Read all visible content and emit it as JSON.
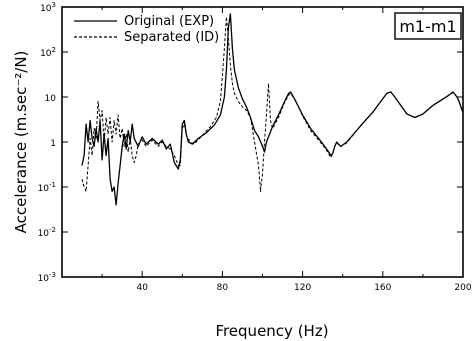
{
  "chart_data": {
    "type": "line",
    "xlabel": "Frequency (Hz)",
    "ylabel": "Accelerance (m.sec⁻²/N)",
    "annotation": "m1-m1",
    "xlim": [
      0,
      200
    ],
    "ylim": [
      0.001,
      1000
    ],
    "yscale": "log",
    "grid": false,
    "legend_position": "top-left",
    "x_ticks": [
      {
        "value": 40,
        "label": "40"
      },
      {
        "value": 80,
        "label": "80"
      },
      {
        "value": 120,
        "label": "120"
      },
      {
        "value": 160,
        "label": "160"
      },
      {
        "value": 200,
        "label": "200"
      }
    ],
    "y_ticks": [
      {
        "value": 0.001,
        "base": "10",
        "exp": "-3"
      },
      {
        "value": 0.01,
        "base": "10",
        "exp": "-2"
      },
      {
        "value": 0.1,
        "base": "10",
        "exp": "-1"
      },
      {
        "value": 1,
        "base": "1",
        "exp": ""
      },
      {
        "value": 10,
        "base": "10",
        "exp": ""
      },
      {
        "value": 100,
        "base": "10",
        "exp": "2"
      },
      {
        "value": 1000,
        "base": "10",
        "exp": "3"
      }
    ],
    "series": [
      {
        "name": "Original  (EXP)",
        "style": "solid",
        "points": [
          [
            10,
            0.3
          ],
          [
            11,
            0.5
          ],
          [
            12,
            2.5
          ],
          [
            13,
            1.0
          ],
          [
            14,
            3.0
          ],
          [
            15,
            1.2
          ],
          [
            16,
            0.8
          ],
          [
            17,
            2.0
          ],
          [
            18,
            1.0
          ],
          [
            19,
            3.0
          ],
          [
            20,
            0.4
          ],
          [
            21,
            1.5
          ],
          [
            22,
            0.5
          ],
          [
            23,
            1.2
          ],
          [
            24,
            0.15
          ],
          [
            25,
            0.08
          ],
          [
            26,
            0.1
          ],
          [
            27,
            0.04
          ],
          [
            28,
            0.12
          ],
          [
            29,
            0.3
          ],
          [
            30,
            0.8
          ],
          [
            31,
            1.5
          ],
          [
            32,
            0.7
          ],
          [
            33,
            1.8
          ],
          [
            34,
            1.0
          ],
          [
            35,
            2.5
          ],
          [
            36,
            1.2
          ],
          [
            38,
            0.8
          ],
          [
            40,
            1.3
          ],
          [
            42,
            0.9
          ],
          [
            45,
            1.2
          ],
          [
            48,
            0.9
          ],
          [
            50,
            1.1
          ],
          [
            52,
            0.7
          ],
          [
            54,
            0.9
          ],
          [
            56,
            0.35
          ],
          [
            58,
            0.25
          ],
          [
            59,
            0.4
          ],
          [
            60,
            2.5
          ],
          [
            61,
            3.0
          ],
          [
            62,
            1.5
          ],
          [
            63,
            1.0
          ],
          [
            65,
            0.9
          ],
          [
            68,
            1.2
          ],
          [
            72,
            1.6
          ],
          [
            76,
            2.4
          ],
          [
            79,
            4.0
          ],
          [
            81,
            10
          ],
          [
            82,
            40
          ],
          [
            83,
            350
          ],
          [
            84,
            700
          ],
          [
            85,
            120
          ],
          [
            86,
            40
          ],
          [
            88,
            16
          ],
          [
            90,
            9
          ],
          [
            92,
            6
          ],
          [
            94,
            3.5
          ],
          [
            96,
            1.8
          ],
          [
            98,
            1.3
          ],
          [
            100,
            0.8
          ],
          [
            101,
            0.6
          ],
          [
            102,
            1.0
          ],
          [
            103,
            1.3
          ],
          [
            105,
            2.2
          ],
          [
            108,
            4.0
          ],
          [
            111,
            8.0
          ],
          [
            113,
            12
          ],
          [
            114,
            13
          ],
          [
            116,
            9
          ],
          [
            118,
            6
          ],
          [
            120,
            4.0
          ],
          [
            124,
            2.0
          ],
          [
            128,
            1.2
          ],
          [
            131,
            0.8
          ],
          [
            133,
            0.6
          ],
          [
            134,
            0.5
          ],
          [
            135,
            0.55
          ],
          [
            136,
            0.8
          ],
          [
            137,
            1.0
          ],
          [
            139,
            0.8
          ],
          [
            142,
            1.0
          ],
          [
            146,
            1.6
          ],
          [
            150,
            2.6
          ],
          [
            155,
            4.6
          ],
          [
            159,
            8.0
          ],
          [
            162,
            12
          ],
          [
            164,
            13
          ],
          [
            166,
            10
          ],
          [
            168,
            7.5
          ],
          [
            172,
            4.2
          ],
          [
            176,
            3.5
          ],
          [
            180,
            4.2
          ],
          [
            185,
            6.5
          ],
          [
            190,
            9.0
          ],
          [
            193,
            11
          ],
          [
            195,
            13
          ],
          [
            197,
            10
          ],
          [
            198,
            8
          ],
          [
            199,
            6
          ],
          [
            200,
            4.5
          ]
        ]
      },
      {
        "name": "Separated  (ID)",
        "style": "dashed",
        "points": [
          [
            10,
            0.15
          ],
          [
            11,
            0.1
          ],
          [
            12,
            0.08
          ],
          [
            13,
            0.3
          ],
          [
            14,
            1.2
          ],
          [
            15,
            0.5
          ],
          [
            16,
            2.0
          ],
          [
            17,
            1.2
          ],
          [
            18,
            8.0
          ],
          [
            19,
            3.0
          ],
          [
            20,
            5.0
          ],
          [
            21,
            1.0
          ],
          [
            22,
            3.5
          ],
          [
            23,
            1.5
          ],
          [
            24,
            3.5
          ],
          [
            25,
            1.0
          ],
          [
            26,
            3.0
          ],
          [
            27,
            1.5
          ],
          [
            28,
            4.0
          ],
          [
            29,
            1.2
          ],
          [
            30,
            2.0
          ],
          [
            31,
            0.8
          ],
          [
            32,
            1.5
          ],
          [
            33,
            0.6
          ],
          [
            34,
            1.2
          ],
          [
            35,
            0.5
          ],
          [
            36,
            0.35
          ],
          [
            37,
            0.5
          ],
          [
            38,
            0.9
          ],
          [
            40,
            1.1
          ],
          [
            42,
            0.8
          ],
          [
            45,
            1.1
          ],
          [
            48,
            0.8
          ],
          [
            50,
            1.0
          ],
          [
            52,
            0.8
          ],
          [
            54,
            0.7
          ],
          [
            56,
            0.5
          ],
          [
            58,
            0.3
          ],
          [
            59,
            0.3
          ],
          [
            60,
            2.0
          ],
          [
            61,
            2.5
          ],
          [
            62,
            1.4
          ],
          [
            64,
            1.0
          ],
          [
            66,
            0.9
          ],
          [
            70,
            1.4
          ],
          [
            74,
            2.2
          ],
          [
            77,
            3.5
          ],
          [
            79,
            8.0
          ],
          [
            80,
            30
          ],
          [
            81,
            120
          ],
          [
            82,
            600
          ],
          [
            83,
            200
          ],
          [
            84,
            50
          ],
          [
            85,
            20
          ],
          [
            86,
            12
          ],
          [
            88,
            8
          ],
          [
            90,
            6
          ],
          [
            92,
            5
          ],
          [
            94,
            3.5
          ],
          [
            96,
            1.0
          ],
          [
            98,
            0.3
          ],
          [
            99,
            0.08
          ],
          [
            100,
            0.2
          ],
          [
            101,
            1.0
          ],
          [
            102,
            4.0
          ],
          [
            103,
            20
          ],
          [
            104,
            3.0
          ],
          [
            105,
            2.0
          ],
          [
            108,
            3.5
          ],
          [
            111,
            7.5
          ],
          [
            113,
            11
          ],
          [
            114,
            12
          ],
          [
            116,
            9
          ],
          [
            118,
            6
          ],
          [
            120,
            3.8
          ],
          [
            124,
            1.8
          ],
          [
            128,
            1.1
          ],
          [
            131,
            0.75
          ],
          [
            133,
            0.55
          ],
          [
            134,
            0.45
          ],
          [
            135,
            0.55
          ],
          [
            136,
            0.8
          ],
          [
            137,
            0.95
          ],
          [
            139,
            0.8
          ],
          [
            142,
            0.95
          ],
          [
            146,
            1.6
          ],
          [
            150,
            2.6
          ],
          [
            155,
            4.6
          ],
          [
            159,
            8.0
          ],
          [
            162,
            12
          ],
          [
            164,
            13
          ],
          [
            166,
            10
          ],
          [
            168,
            7.5
          ],
          [
            172,
            4.2
          ],
          [
            176,
            3.5
          ],
          [
            180,
            4.2
          ],
          [
            185,
            6.5
          ],
          [
            190,
            9.0
          ],
          [
            193,
            11
          ],
          [
            195,
            12.5
          ],
          [
            197,
            10
          ],
          [
            198,
            8
          ],
          [
            199,
            6
          ],
          [
            200,
            4.5
          ]
        ]
      }
    ]
  }
}
